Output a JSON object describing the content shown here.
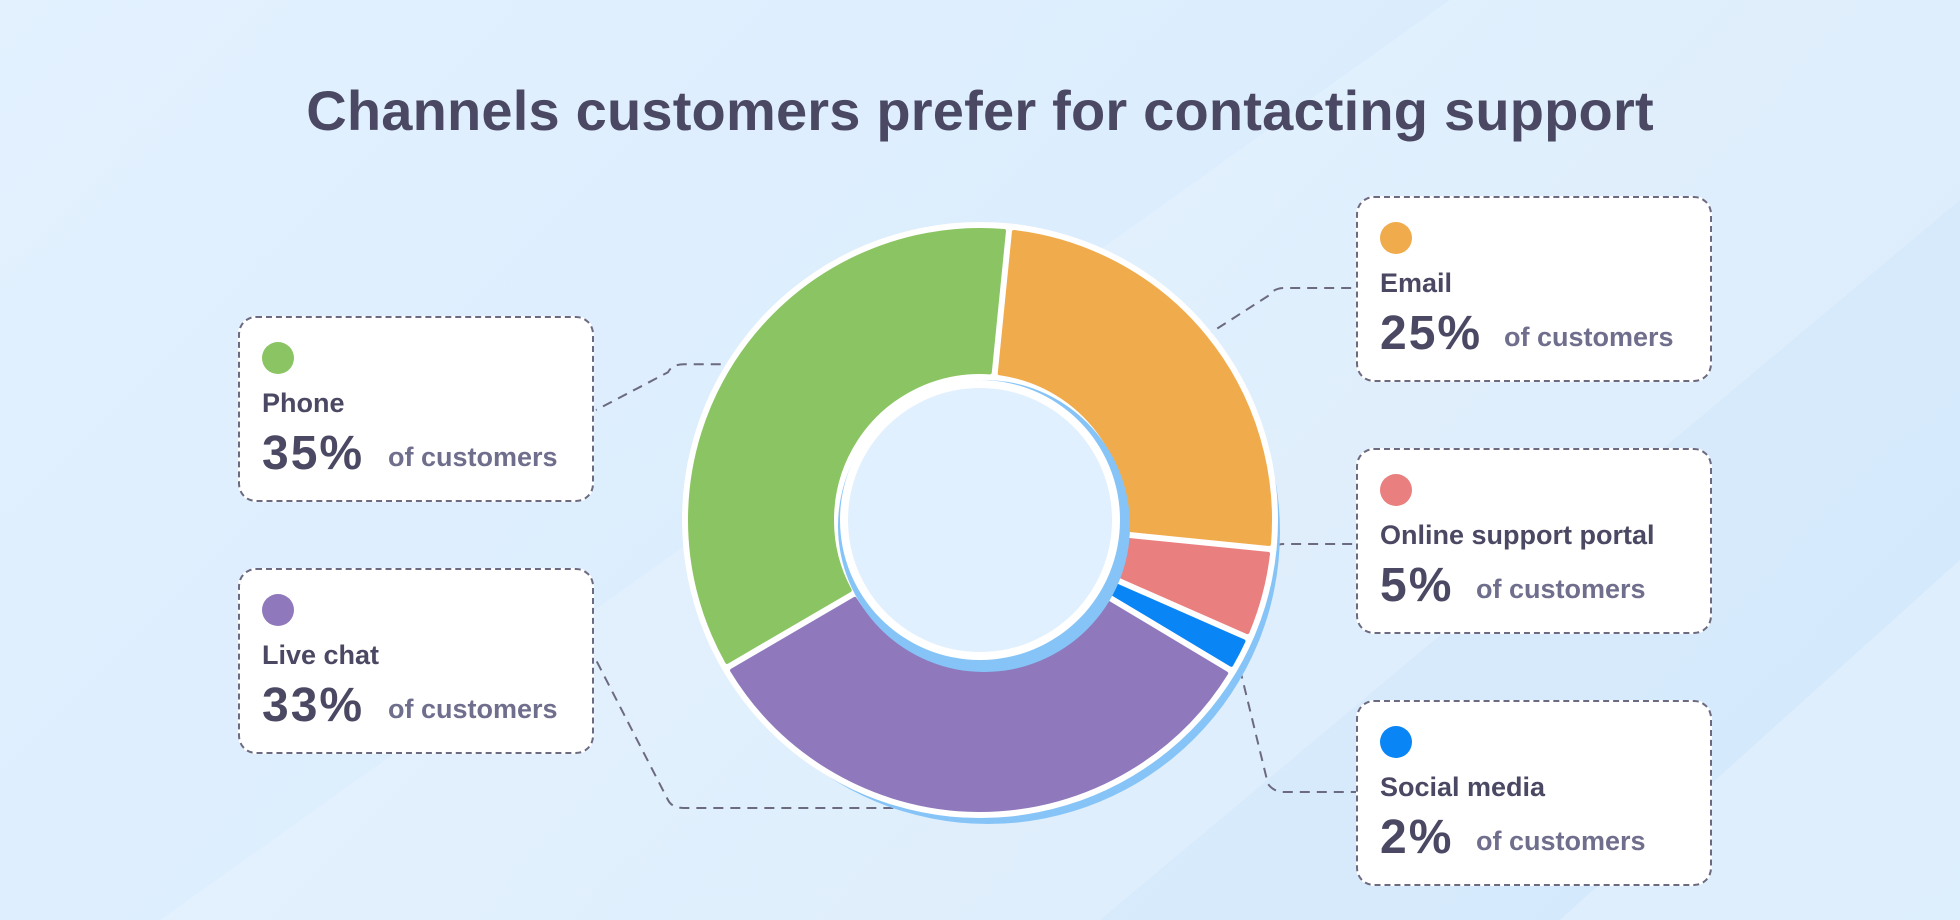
{
  "chart_data": {
    "type": "pie",
    "variant": "donut",
    "title": "Channels customers prefer for contacting support",
    "value_suffix": "of customers",
    "series": [
      {
        "name": "Phone",
        "value": 35,
        "display": "35%",
        "color": "#8bc462"
      },
      {
        "name": "Email",
        "value": 25,
        "display": "25%",
        "color": "#f0ab4d"
      },
      {
        "name": "Online support portal",
        "value": 5,
        "display": "5%",
        "color": "#e9807f"
      },
      {
        "name": "Social media",
        "value": 2,
        "display": "2%",
        "color": "#0a85f5"
      },
      {
        "name": "Live chat",
        "value": 33,
        "display": "33%",
        "color": "#8f79bc"
      }
    ]
  },
  "colors": {
    "title_text": "#4a4862",
    "suffix_text": "#6f6e8d",
    "ring_shadow": "#86c4f7",
    "connector": "#6c6a80"
  }
}
